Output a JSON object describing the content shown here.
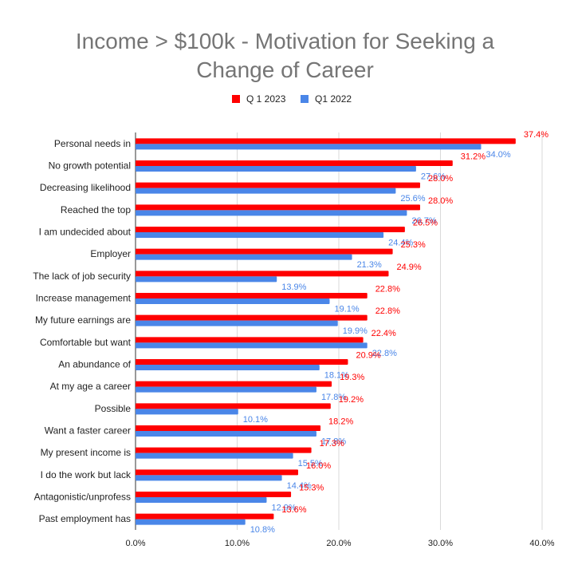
{
  "chart_data": {
    "type": "bar",
    "orientation": "horizontal",
    "title_line1": "Income > $100k - Motivation for Seeking a",
    "title_line2": "Change of Career",
    "xlabel": "",
    "ylabel": "",
    "xlim": [
      0,
      40
    ],
    "x_ticks": [
      "0.0%",
      "10.0%",
      "20.0%",
      "30.0%",
      "40.0%"
    ],
    "grid": true,
    "legend_position": "top",
    "categories": [
      "Personal needs in",
      "No growth potential",
      "Decreasing likelihood",
      "Reached the top",
      "I am undecided about",
      "Employer",
      "The lack of job security",
      "Increase management",
      "My future earnings are",
      "Comfortable but want",
      "An abundance of",
      "At my age a career",
      "Possible",
      "Want a faster career",
      "My present income is",
      "I do the work but lack",
      "Antagonistic/unprofess",
      "Past employment has"
    ],
    "series": [
      {
        "name": "Q 1 2023",
        "color": "#ff0000",
        "values": [
          37.4,
          31.2,
          28.0,
          28.0,
          26.5,
          25.3,
          24.9,
          22.8,
          22.8,
          22.4,
          20.9,
          19.3,
          19.2,
          18.2,
          17.3,
          16.0,
          15.3,
          13.6
        ],
        "labels": [
          "37.4%",
          "31.2%",
          "28.0%",
          "28.0%",
          "26.5%",
          "25.3%",
          "24.9%",
          "22.8%",
          "22.8%",
          "22.4%",
          "20.9%",
          "19.3%",
          "19.2%",
          "18.2%",
          "17.3%",
          "16.0%",
          "15.3%",
          "13.6%"
        ]
      },
      {
        "name": "Q1 2022",
        "color": "#4a86e8",
        "values": [
          34.0,
          27.6,
          25.6,
          26.7,
          24.4,
          21.3,
          13.9,
          19.1,
          19.9,
          22.8,
          18.1,
          17.8,
          10.1,
          17.8,
          15.5,
          14.4,
          12.9,
          10.8
        ],
        "labels": [
          "34.0%",
          "27.6%",
          "25.6%",
          "26.7%",
          "24.4%",
          "21.3%",
          "13.9%",
          "19.1%",
          "19.9%",
          "22.8%",
          "18.1%",
          "17.8%",
          "10.1%",
          "17.8%",
          "15.5%",
          "14.4%",
          "12.9%",
          "10.8%"
        ]
      }
    ]
  }
}
